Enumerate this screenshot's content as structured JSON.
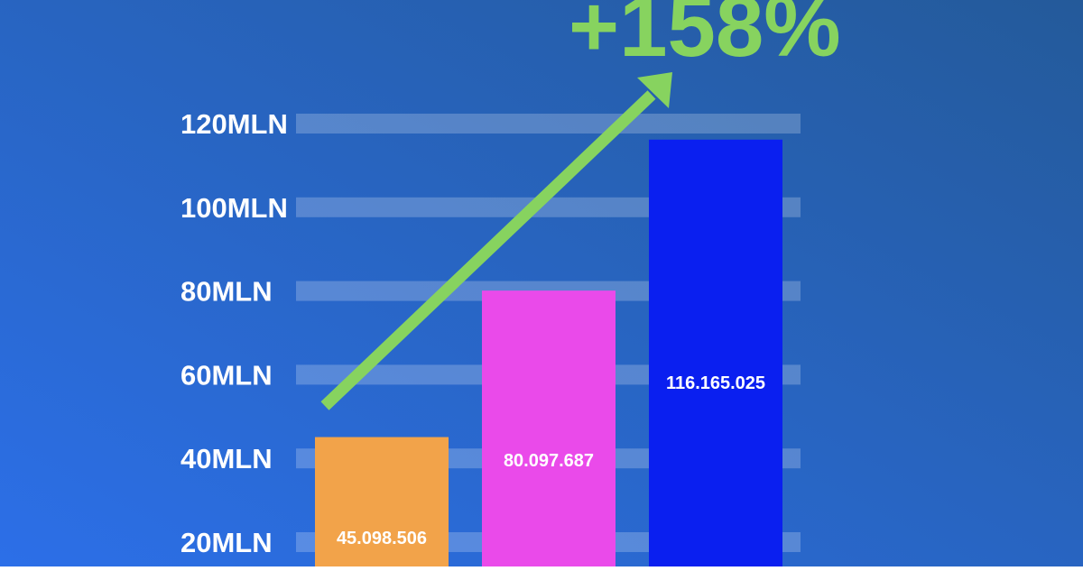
{
  "headline": "+158%",
  "colors": {
    "background_start": "#2c6fe8",
    "background_end": "#245a9a",
    "gridline": "#ffffff",
    "arrow": "#87d35f",
    "headline": "#87d35f",
    "tick_text": "#ffffff",
    "label_text": "#ffffff"
  },
  "chart_data": {
    "type": "bar",
    "title": "",
    "xlabel": "",
    "ylabel": "",
    "grid": true,
    "ylim": [
      0,
      120000000
    ],
    "y_ticks": [
      {
        "value": 20000000,
        "label": "20MLN"
      },
      {
        "value": 40000000,
        "label": "40MLN"
      },
      {
        "value": 60000000,
        "label": "60MLN"
      },
      {
        "value": 80000000,
        "label": "80MLN"
      },
      {
        "value": 100000000,
        "label": "100MLN"
      },
      {
        "value": 120000000,
        "label": "120MLN"
      }
    ],
    "bars": [
      {
        "value": 45098506,
        "label": "45.098.506",
        "color": "#f2a34a"
      },
      {
        "value": 80097687,
        "label": "80.097.687",
        "color": "#ea4aea"
      },
      {
        "value": 116165025,
        "label": "116.165.025",
        "color": "#0a1ff0"
      }
    ]
  }
}
